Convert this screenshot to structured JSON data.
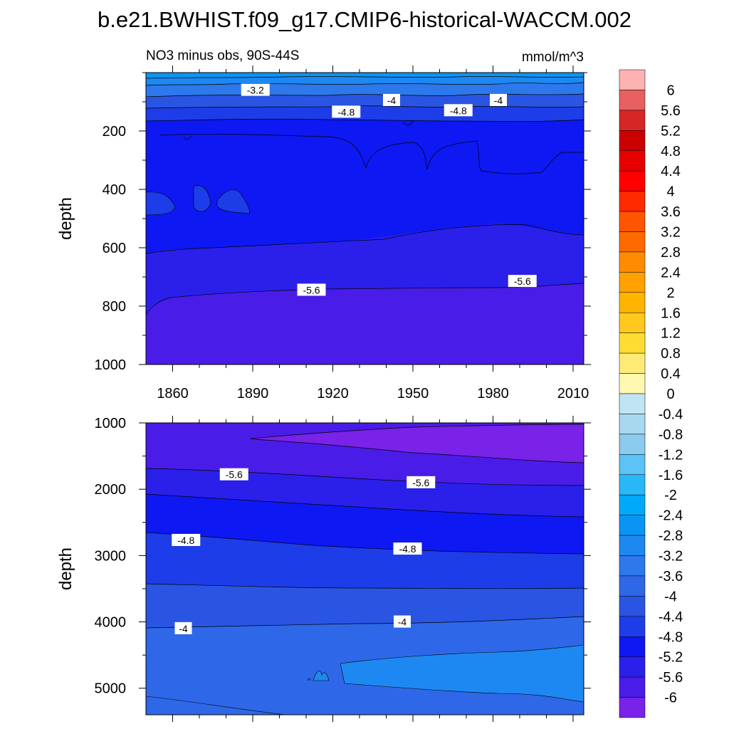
{
  "title": "b.e21.BWHIST.f09_g17.CMIP6-historical-WACCM.002",
  "chart_data": [
    {
      "type": "contour",
      "panel": "upper",
      "left_label": "NO3 minus obs, 90S-44S",
      "right_label": "mmol/m^3",
      "ylabel": "depth",
      "ylim": [
        0,
        1000
      ],
      "yticks": [
        "200",
        "400",
        "600",
        "800",
        "1000"
      ],
      "xlim": [
        1850,
        2014
      ],
      "xticks": [
        "1860",
        "1890",
        "1920",
        "1950",
        "1980",
        "2010"
      ],
      "contour_labels": [
        {
          "text": "-3.2",
          "year": 1891,
          "depth": 60
        },
        {
          "text": "-4",
          "year": 1942,
          "depth": 95
        },
        {
          "text": "-4",
          "year": 1982,
          "depth": 95
        },
        {
          "text": "-4.8",
          "year": 1925,
          "depth": 135
        },
        {
          "text": "-4.8",
          "year": 1967,
          "depth": 130
        },
        {
          "text": "-5.6",
          "year": 1912,
          "depth": 745
        },
        {
          "text": "-5.6",
          "year": 1991,
          "depth": 715
        }
      ]
    },
    {
      "type": "contour",
      "panel": "lower",
      "ylabel": "depth",
      "ylim": [
        1000,
        5400
      ],
      "yticks": [
        "1000",
        "2000",
        "3000",
        "4000",
        "5000"
      ],
      "xlim": [
        1850,
        2014
      ],
      "contour_labels": [
        {
          "text": "-5.6",
          "year": 1883,
          "depth": 1780
        },
        {
          "text": "-5.6",
          "year": 1953,
          "depth": 1900
        },
        {
          "text": "-4.8",
          "year": 1865,
          "depth": 2770
        },
        {
          "text": "-4.8",
          "year": 1948,
          "depth": 2900
        },
        {
          "text": "-4",
          "year": 1864,
          "depth": 4100
        },
        {
          "text": "-4",
          "year": 1946,
          "depth": 4000
        }
      ]
    }
  ],
  "colorbar": {
    "labels": [
      "6",
      "5.6",
      "5.2",
      "4.8",
      "4.4",
      "4",
      "3.6",
      "3.2",
      "2.8",
      "2.4",
      "2",
      "1.6",
      "1.2",
      "0.8",
      "0.4",
      "0",
      "-0.4",
      "-0.8",
      "-1.2",
      "-1.6",
      "-2",
      "-2.4",
      "-2.8",
      "-3.2",
      "-3.6",
      "-4",
      "-4.4",
      "-4.8",
      "-5.2",
      "-5.6",
      "-6"
    ],
    "colors": [
      "#FFB2B2",
      "#E86060",
      "#D72626",
      "#CC0000",
      "#E60000",
      "#FF0000",
      "#FF2A00",
      "#FF5500",
      "#FF6A00",
      "#FF8C00",
      "#FFA200",
      "#FFB400",
      "#FFC81E",
      "#FFDC32",
      "#FFEB78",
      "#FFF8B0",
      "#C0E4F4",
      "#A8D8F0",
      "#8CCAEE",
      "#5BC3F5",
      "#28B8F8",
      "#00AAF8",
      "#0A95F5",
      "#1E88F2",
      "#2D79EC",
      "#2E68E8",
      "#2A55E2",
      "#1D3DE8",
      "#0E18F2",
      "#2A20EA",
      "#4A1CE8",
      "#7922E8"
    ]
  }
}
